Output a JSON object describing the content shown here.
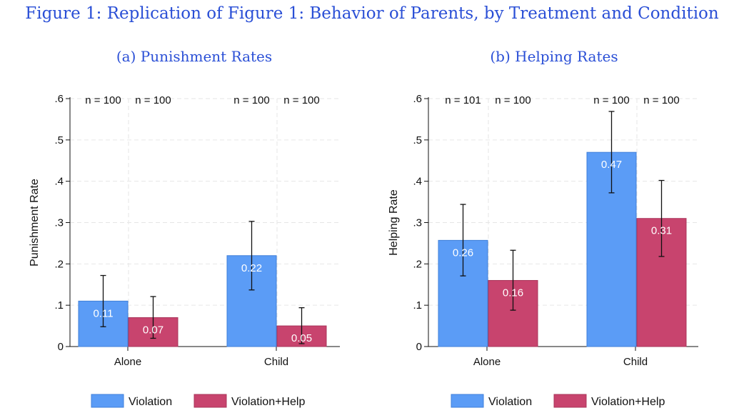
{
  "title": "Figure 1: Replication of Figure 1: Behavior of Parents, by Treatment and Condition",
  "colors": {
    "violation": "#5b9cf6",
    "violation_help": "#c8446e",
    "title": "#2a4fd6"
  },
  "legend": [
    "Violation",
    "Violation+Help"
  ],
  "chart_data": [
    {
      "type": "bar",
      "title": "(a) Punishment Rates",
      "ylabel": "Punishment Rate",
      "xlabel": "",
      "ylim": [
        0,
        0.6
      ],
      "yticks": [
        0,
        0.1,
        0.2,
        0.3,
        0.4,
        0.5,
        0.6
      ],
      "ytick_labels": [
        "0",
        ".1",
        ".2",
        ".3",
        ".4",
        ".5",
        ".6"
      ],
      "categories": [
        "Alone",
        "Child"
      ],
      "series": [
        {
          "name": "Violation",
          "values": [
            0.11,
            0.22
          ],
          "labels": [
            "0.11",
            "0.22"
          ],
          "ci_low": [
            0.048,
            0.137
          ],
          "ci_high": [
            0.172,
            0.303
          ],
          "n": [
            "n = 100",
            "n = 100"
          ]
        },
        {
          "name": "Violation+Help",
          "values": [
            0.07,
            0.05
          ],
          "labels": [
            "0.07",
            "0.05"
          ],
          "ci_low": [
            0.02,
            0.007
          ],
          "ci_high": [
            0.121,
            0.094
          ],
          "n": [
            "n = 100",
            "n = 100"
          ]
        }
      ]
    },
    {
      "type": "bar",
      "title": "(b) Helping Rates",
      "ylabel": "Helping Rate",
      "xlabel": "",
      "ylim": [
        0,
        0.6
      ],
      "yticks": [
        0,
        0.1,
        0.2,
        0.3,
        0.4,
        0.5,
        0.6
      ],
      "ytick_labels": [
        "0",
        ".1",
        ".2",
        ".3",
        ".4",
        ".5",
        ".6"
      ],
      "categories": [
        "Alone",
        "Child"
      ],
      "series": [
        {
          "name": "Violation",
          "values": [
            0.257,
            0.47
          ],
          "labels": [
            "0.26",
            "0.47"
          ],
          "ci_low": [
            0.171,
            0.372
          ],
          "ci_high": [
            0.344,
            0.569
          ],
          "n": [
            "n = 101",
            "n = 100"
          ]
        },
        {
          "name": "Violation+Help",
          "values": [
            0.16,
            0.31
          ],
          "labels": [
            "0.16",
            "0.31"
          ],
          "ci_low": [
            0.088,
            0.218
          ],
          "ci_high": [
            0.233,
            0.402
          ],
          "n": [
            "n = 100",
            "n = 100"
          ]
        }
      ]
    }
  ]
}
